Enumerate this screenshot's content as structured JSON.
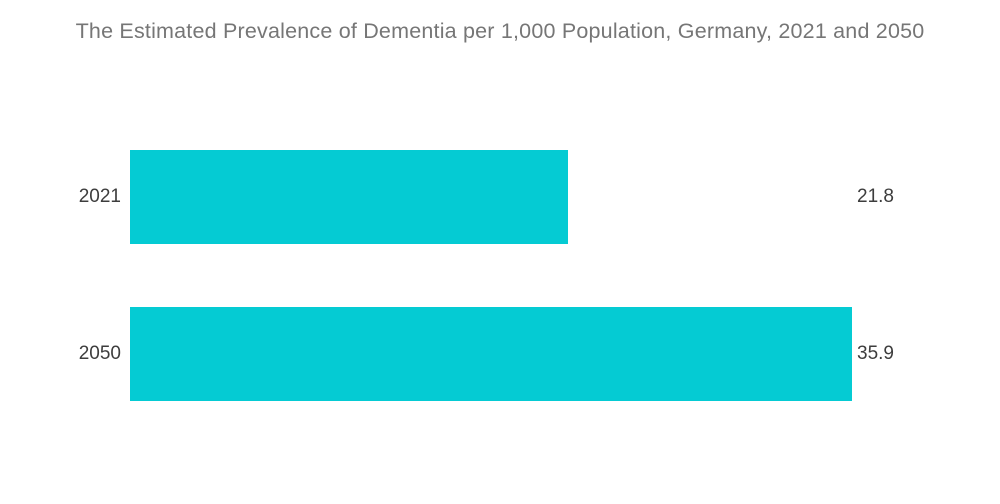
{
  "title": {
    "text": "The Estimated Prevalence of Dementia per 1,000 Population, Germany, 2021 and 2050"
  },
  "colors": {
    "bar": "#05CBD3",
    "title_text": "#767676",
    "label_text": "#3D3D3D",
    "background": "#FFFFFF"
  },
  "chart_data": {
    "type": "bar",
    "orientation": "horizontal",
    "title": "The Estimated Prevalence of Dementia per 1,000 Population, Germany, 2021 and 2050",
    "categories": [
      "2021",
      "2050"
    ],
    "values": [
      21.8,
      35.9
    ],
    "value_labels": [
      "21.8",
      "35.9"
    ],
    "xlabel": "",
    "ylabel": "",
    "xlim": [
      0,
      35.9
    ],
    "grid": false,
    "legend": false,
    "bar_color": "#05CBD3",
    "value_label_position": "outside-right",
    "category_label_position": "left"
  }
}
